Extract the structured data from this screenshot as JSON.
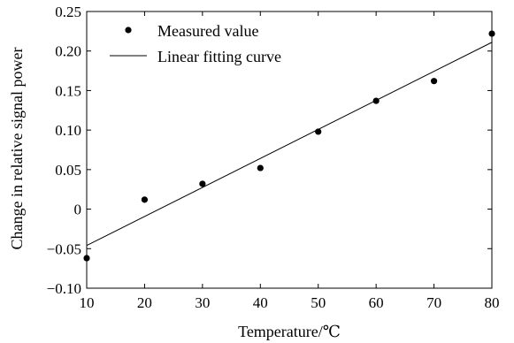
{
  "chart_data": {
    "type": "scatter",
    "xlabel": "Temperature/℃",
    "ylabel": "Change in relative signal power",
    "xlim": [
      10,
      80
    ],
    "ylim": [
      -0.1,
      0.25
    ],
    "x_ticks": [
      10,
      20,
      30,
      40,
      50,
      60,
      70,
      80
    ],
    "y_ticks": [
      -0.1,
      -0.05,
      0,
      0.05,
      0.1,
      0.15,
      0.2,
      0.25
    ],
    "x_tick_labels": [
      "10",
      "20",
      "30",
      "40",
      "50",
      "60",
      "70",
      "80"
    ],
    "y_tick_labels": [
      "−0.10",
      "−0.05",
      "0",
      "0.05",
      "0.10",
      "0.15",
      "0.20",
      "0.25"
    ],
    "grid": false,
    "legend_position": "top-left",
    "series": [
      {
        "name": "Measured value",
        "type": "scatter",
        "x": [
          10,
          20,
          30,
          40,
          50,
          60,
          70,
          80
        ],
        "y": [
          -0.062,
          0.012,
          0.032,
          0.052,
          0.098,
          0.137,
          0.162,
          0.222
        ]
      },
      {
        "name": "Linear fitting curve",
        "type": "line",
        "x": [
          10,
          80
        ],
        "y": [
          -0.046,
          0.211
        ]
      }
    ]
  }
}
